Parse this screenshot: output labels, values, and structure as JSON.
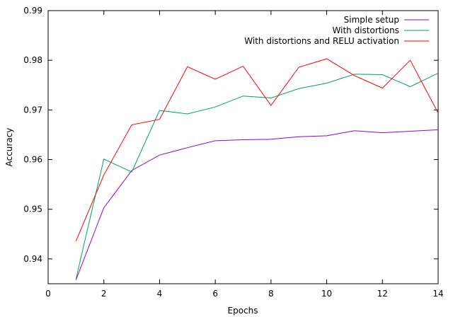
{
  "chart_data": {
    "type": "line",
    "xlabel": "Epochs",
    "ylabel": "Accuracy",
    "xlim": [
      0,
      14
    ],
    "ylim": [
      0.935,
      0.99
    ],
    "xticks": [
      "0",
      "2",
      "4",
      "6",
      "8",
      "10",
      "12",
      "14"
    ],
    "yticks": [
      "0.94",
      "0.95",
      "0.96",
      "0.97",
      "0.98",
      "0.99"
    ],
    "xtick_values": [
      0,
      2,
      4,
      6,
      8,
      10,
      12,
      14
    ],
    "ytick_values": [
      0.94,
      0.95,
      0.96,
      0.97,
      0.98,
      0.99
    ],
    "grid": false,
    "legend_position": "top-right",
    "x": [
      1,
      2,
      3,
      4,
      5,
      6,
      7,
      8,
      9,
      10,
      11,
      12,
      13,
      14
    ],
    "series": [
      {
        "name": "Simple setup",
        "color": "#9400d3",
        "values": [
          0.9358,
          0.9503,
          0.9578,
          0.9609,
          0.9624,
          0.9638,
          0.964,
          0.9641,
          0.9646,
          0.9648,
          0.9658,
          0.9654,
          0.9657,
          0.966
        ]
      },
      {
        "name": "With distortions",
        "color": "#009e73",
        "values": [
          0.936,
          0.9601,
          0.9575,
          0.9699,
          0.9692,
          0.9706,
          0.9728,
          0.9724,
          0.9743,
          0.9754,
          0.9772,
          0.9771,
          0.9747,
          0.9774
        ]
      },
      {
        "name": "With distortions and RELU activation",
        "color": "#ff0000",
        "values": [
          0.9436,
          0.9569,
          0.967,
          0.9681,
          0.9787,
          0.9762,
          0.9788,
          0.9709,
          0.9786,
          0.9803,
          0.9769,
          0.9744,
          0.98,
          0.9694
        ]
      }
    ]
  }
}
